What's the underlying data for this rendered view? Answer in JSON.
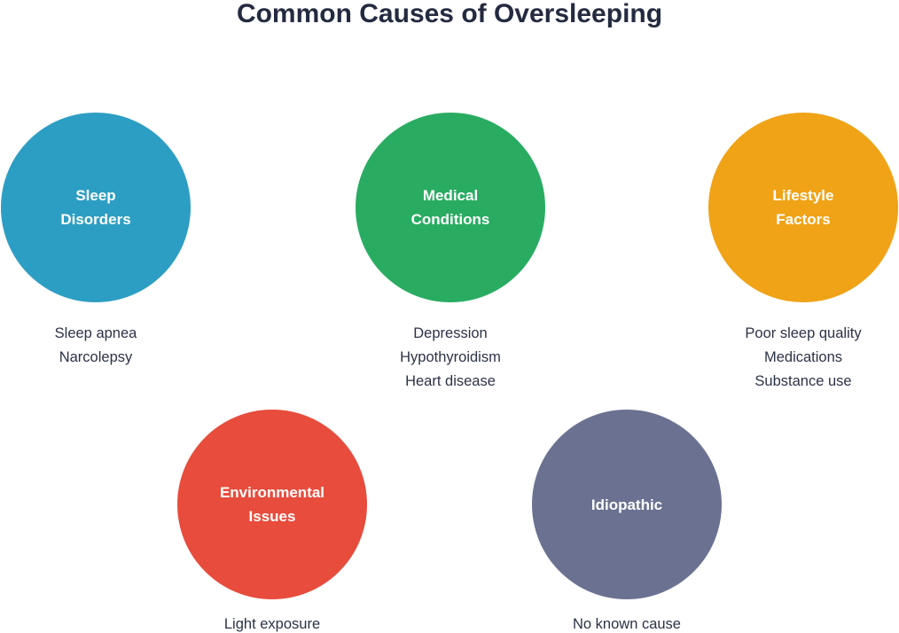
{
  "title": "Common Causes of Oversleeping",
  "colors": {
    "background": "#ffffff",
    "title_text": "#242a40",
    "example_text": "#2c3247",
    "circle_label_text": "#ffffff",
    "sleep_disorders": "#2d9ec3",
    "medical_conditions": "#29ac62",
    "lifestyle_factors": "#f0a316",
    "environmental_issues": "#e74c3c",
    "idiopathic": "#6b7190"
  },
  "nodes": [
    {
      "label": "Sleep Disorders",
      "color": "#2d9ec3",
      "examples": [
        "Sleep apnea",
        "Narcolepsy"
      ]
    },
    {
      "label": "Medical Conditions",
      "color": "#29ac62",
      "examples": [
        "Depression",
        "Hypothyroidism",
        "Heart disease"
      ]
    },
    {
      "label": "Lifestyle Factors",
      "color": "#f0a316",
      "examples": [
        "Poor sleep quality",
        "Medications",
        "Substance use"
      ]
    },
    {
      "label": "Environmental Issues",
      "color": "#e74c3c",
      "examples": [
        "Light exposure"
      ]
    },
    {
      "label": "Idiopathic",
      "color": "#6b7190",
      "examples": [
        "No known cause"
      ]
    }
  ]
}
